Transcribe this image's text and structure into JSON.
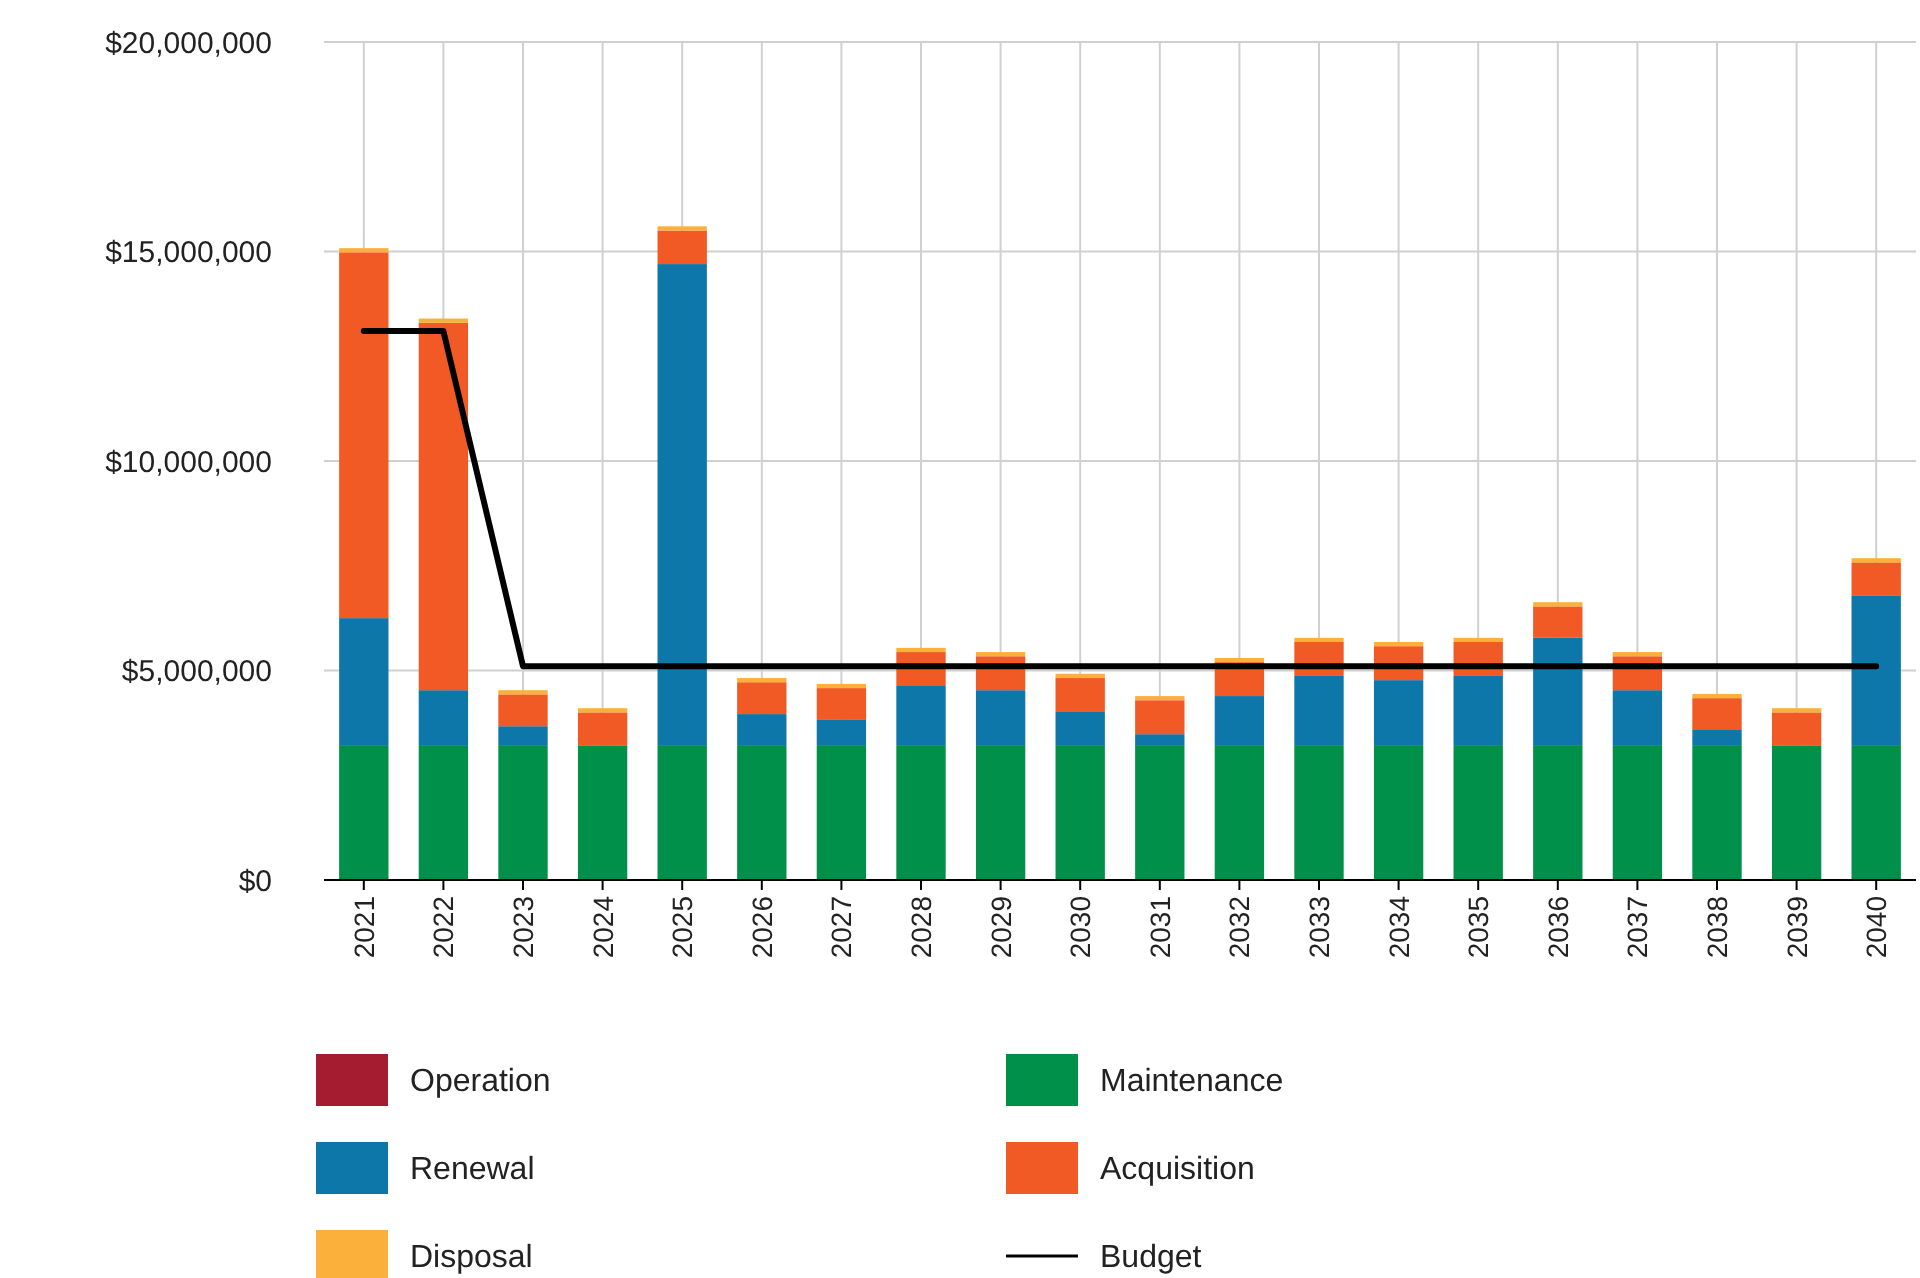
{
  "chart_data": {
    "type": "bar",
    "stacked": true,
    "categories": [
      "2021",
      "2022",
      "2023",
      "2024",
      "2025",
      "2026",
      "2027",
      "2028",
      "2029",
      "2030",
      "2031",
      "2032",
      "2033",
      "2034",
      "2035",
      "2036",
      "2037",
      "2038",
      "2039",
      "2040"
    ],
    "series": [
      {
        "name": "Operation",
        "color": "#a51c30",
        "values": [
          0,
          0,
          0,
          0,
          0,
          0,
          0,
          0,
          0,
          0,
          0,
          0,
          0,
          0,
          0,
          0,
          0,
          0,
          0,
          0
        ]
      },
      {
        "name": "Maintenance",
        "color": "#00904a",
        "values": [
          3200000,
          3200000,
          3200000,
          3200000,
          3200000,
          3200000,
          3200000,
          3200000,
          3200000,
          3200000,
          3200000,
          3200000,
          3200000,
          3200000,
          3200000,
          3200000,
          3200000,
          3200000,
          3200000,
          3200000
        ]
      },
      {
        "name": "Renewal",
        "color": "#0e77aa",
        "values": [
          3050000,
          1330000,
          470000,
          0,
          11500000,
          760000,
          620000,
          1430000,
          1330000,
          810000,
          280000,
          1190000,
          1670000,
          1570000,
          1670000,
          2580000,
          1330000,
          380000,
          0,
          3580000
        ]
      },
      {
        "name": "Acquisition",
        "color": "#f15a24",
        "values": [
          8730000,
          8770000,
          760000,
          800000,
          800000,
          760000,
          760000,
          810000,
          810000,
          810000,
          810000,
          810000,
          810000,
          810000,
          810000,
          750000,
          810000,
          760000,
          800000,
          800000
        ]
      },
      {
        "name": "Disposal",
        "color": "#fbb03b",
        "values": [
          100000,
          100000,
          100000,
          100000,
          100000,
          100000,
          100000,
          100000,
          100000,
          100000,
          100000,
          100000,
          100000,
          100000,
          100000,
          100000,
          100000,
          100000,
          100000,
          100000
        ]
      },
      {
        "name": "Budget",
        "type": "line",
        "color": "#000000",
        "values": [
          13100000,
          13100000,
          5100000,
          5100000,
          5100000,
          5100000,
          5100000,
          5100000,
          5100000,
          5100000,
          5100000,
          5100000,
          5100000,
          5100000,
          5100000,
          5100000,
          5100000,
          5100000,
          5100000,
          5100000
        ]
      }
    ],
    "ylim": [
      0,
      20000000
    ],
    "yticks": [
      {
        "value": 0,
        "label": "$0"
      },
      {
        "value": 5000000,
        "label": "$5,000,000"
      },
      {
        "value": 10000000,
        "label": "$10,000,000"
      },
      {
        "value": 15000000,
        "label": "$15,000,000"
      },
      {
        "value": 20000000,
        "label": "$20,000,000"
      }
    ],
    "grid": true,
    "legend": "bottom"
  }
}
